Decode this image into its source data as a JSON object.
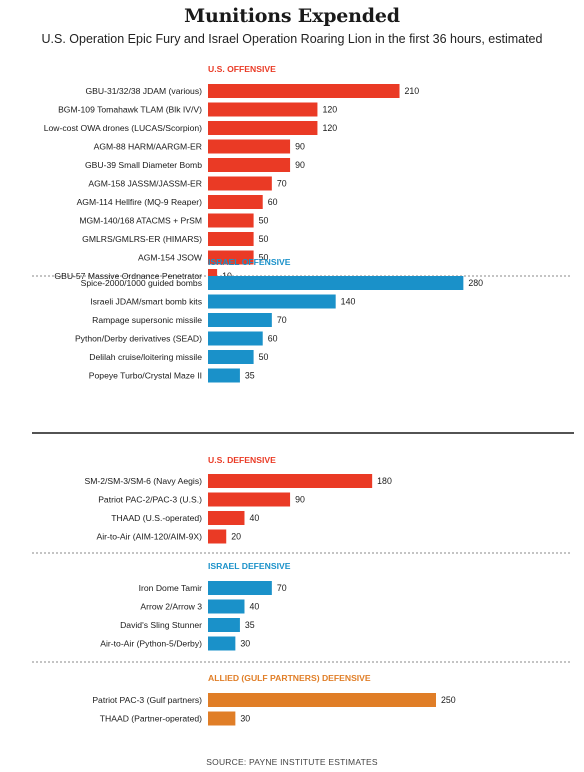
{
  "title": "Munitions Expended",
  "subtitle": "U.S. Operation Epic Fury and Israel Operation Roaring Lion in the first 36 hours, estimated",
  "source": "SOURCE: PAYNE INSTITUTE ESTIMATES",
  "colors": {
    "us": "#ea3a25",
    "israel": "#1a91c9",
    "allied": "#e07e27"
  },
  "chart_data": {
    "type": "bar",
    "orientation": "horizontal",
    "groups": [
      {
        "name": "U.S. OFFENSIVE",
        "color_key": "us",
        "categories": [
          "GBU-31/32/38 JDAM (various)",
          "BGM-109 Tomahawk TLAM (Blk IV/V)",
          "Low-cost OWA drones (LUCAS/Scorpion)",
          "AGM-88 HARM/AARGM-ER",
          "GBU-39 Small Diameter Bomb",
          "AGM-158 JASSM/JASSM-ER",
          "AGM-114 Hellfire (MQ-9 Reaper)",
          "MGM-140/168 ATACMS + PrSM",
          "GMLRS/GMLRS-ER (HIMARS)",
          "AGM-154 JSOW",
          "GBU-57 Massive Ordnance Penetrator"
        ],
        "values": [
          210,
          120,
          120,
          90,
          90,
          70,
          60,
          50,
          50,
          50,
          10
        ]
      },
      {
        "name": "ISRAEL OFFENSIVE",
        "color_key": "israel",
        "categories": [
          "Spice-2000/1000 guided bombs",
          "Israeli JDAM/smart bomb kits",
          "Rampage supersonic missile",
          "Python/Derby derivatives (SEAD)",
          "Delilah cruise/loitering missile",
          "Popeye Turbo/Crystal Maze II"
        ],
        "values": [
          280,
          140,
          70,
          60,
          50,
          35
        ]
      },
      {
        "name": "U.S. DEFENSIVE",
        "color_key": "us",
        "categories": [
          "SM-2/SM-3/SM-6 (Navy Aegis)",
          "Patriot PAC-2/PAC-3 (U.S.)",
          "THAAD (U.S.-operated)",
          "Air-to-Air (AIM-120/AIM-9X)"
        ],
        "values": [
          180,
          90,
          40,
          20
        ]
      },
      {
        "name": "ISRAEL DEFENSIVE",
        "color_key": "israel",
        "categories": [
          "Iron Dome Tamir",
          "Arrow 2/Arrow 3",
          "David's Sling Stunner",
          "Air-to-Air (Python-5/Derby)"
        ],
        "values": [
          70,
          40,
          35,
          30
        ]
      },
      {
        "name": "ALLIED (GULF PARTNERS) DEFENSIVE",
        "color_key": "allied",
        "categories": [
          "Patriot PAC-3 (Gulf partners)",
          "THAAD (Partner-operated)"
        ],
        "values": [
          250,
          30
        ]
      }
    ]
  }
}
